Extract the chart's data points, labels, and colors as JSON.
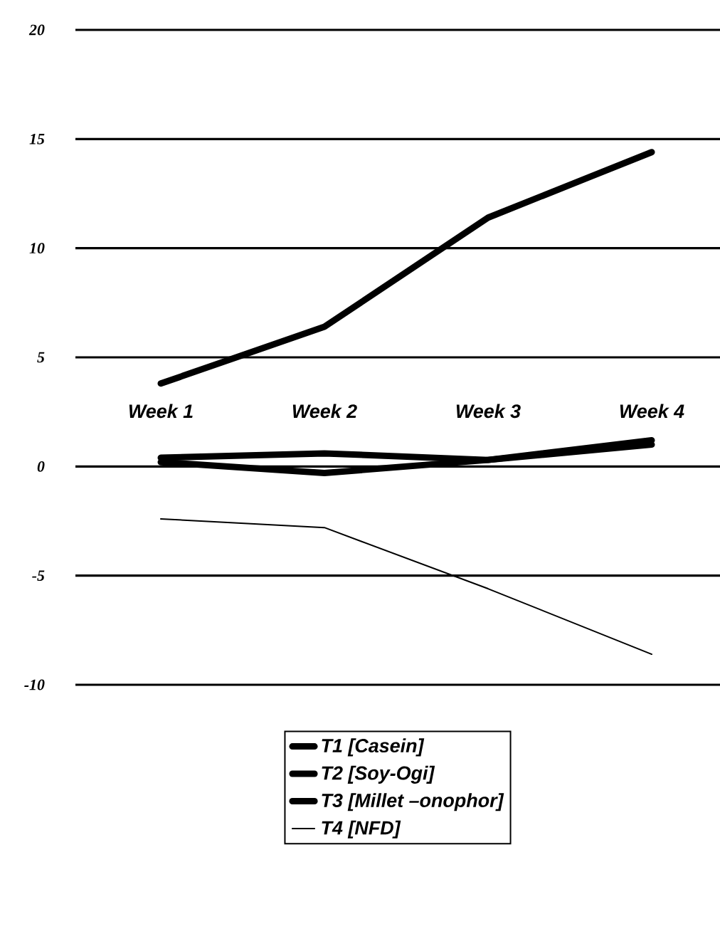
{
  "chart_data": {
    "type": "line",
    "categories": [
      "Week 1",
      "Week 2",
      "Week 3",
      "Week 4"
    ],
    "series": [
      {
        "name": "T1 [Casein]",
        "color": "#000000",
        "values": [
          3.8,
          6.4,
          11.4,
          14.4
        ]
      },
      {
        "name": "T2 [Soy-Ogi]",
        "color": "#000000",
        "values": [
          0.4,
          0.6,
          0.3,
          1.2
        ]
      },
      {
        "name": "T3 [Millet –onophor]",
        "color": "#000000",
        "values": [
          0.2,
          -0.3,
          0.3,
          1.0
        ]
      },
      {
        "name": "T4 [NFD]",
        "color": "#000000",
        "values": [
          -2.4,
          -2.8,
          -5.6,
          -8.6
        ]
      }
    ],
    "ylim": [
      -10,
      20
    ],
    "yticks": [
      -10,
      -5,
      0,
      5,
      10,
      15,
      20
    ],
    "grid": "y",
    "legend": "bottom",
    "marker": "none",
    "line_style": "solid"
  }
}
